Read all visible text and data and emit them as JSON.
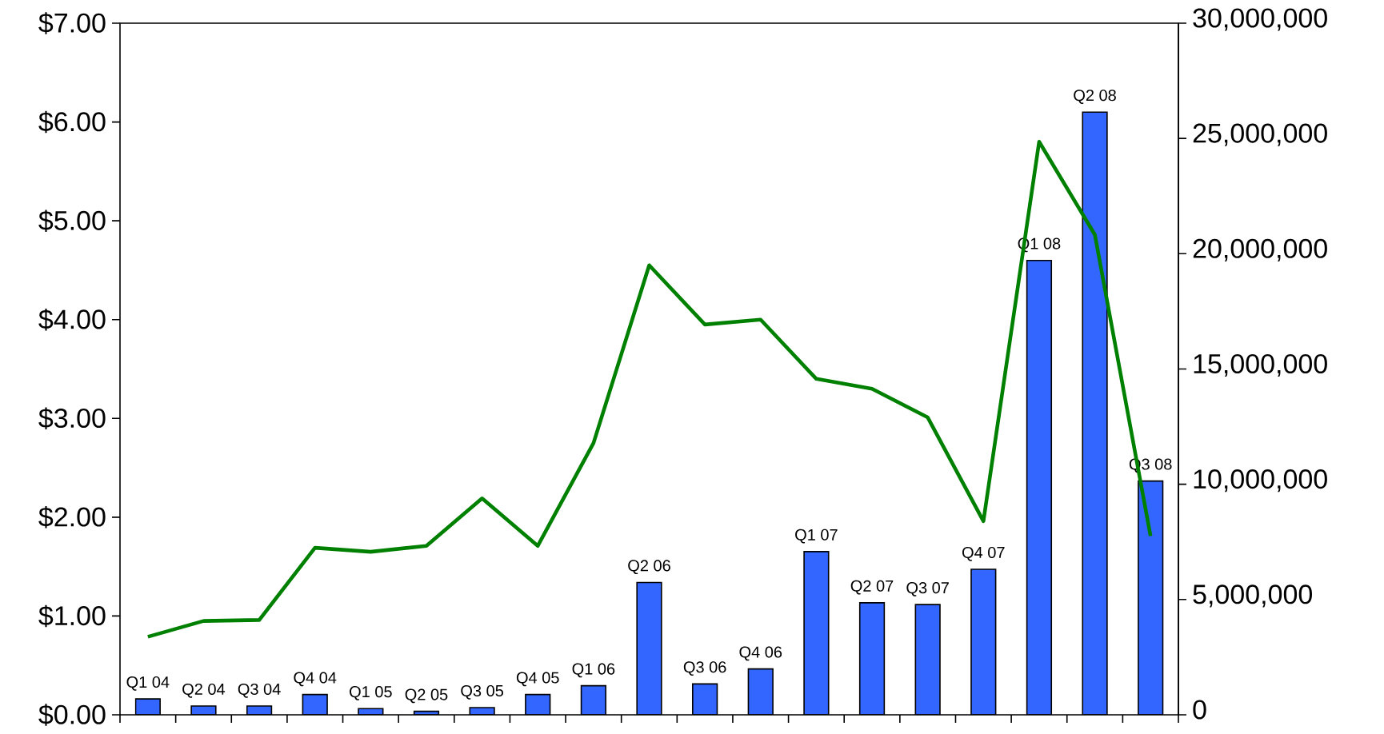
{
  "chart_data": {
    "type": "bar",
    "categories": [
      "Q1 04",
      "Q2 04",
      "Q3 04",
      "Q4 04",
      "Q1 05",
      "Q2 05",
      "Q3 05",
      "Q4 05",
      "Q1 06",
      "Q2 06",
      "Q3 06",
      "Q4 06",
      "Q1 07",
      "Q2 07",
      "Q3 07",
      "Q4 07",
      "Q1 08",
      "Q2 08",
      "Q3 08"
    ],
    "series": [
      {
        "axis": "y2",
        "color": "#3366ff",
        "values": [
          690000,
          380000,
          380000,
          880000,
          270000,
          150000,
          310000,
          880000,
          1260000,
          5740000,
          1340000,
          1990000,
          7080000,
          4860000,
          4780000,
          6310000,
          19710000,
          26140000,
          10140000
        ]
      },
      {
        "type": "line",
        "color": "#008000",
        "values": [
          0.79,
          0.95,
          0.96,
          1.69,
          1.65,
          1.71,
          2.19,
          1.71,
          2.75,
          4.55,
          3.95,
          4.0,
          3.4,
          3.3,
          3.01,
          1.96,
          5.8,
          4.86,
          1.81
        ]
      }
    ],
    "ylim": [
      0,
      7
    ],
    "yticks": [
      {
        "value": 0,
        "label": "$0.00"
      },
      {
        "value": 1,
        "label": "$1.00"
      },
      {
        "value": 2,
        "label": "$2.00"
      },
      {
        "value": 3,
        "label": "$3.00"
      },
      {
        "value": 4,
        "label": "$4.00"
      },
      {
        "value": 5,
        "label": "$5.00"
      },
      {
        "value": 6,
        "label": "$6.00"
      },
      {
        "value": 7,
        "label": "$7.00"
      }
    ],
    "y2lim": [
      0,
      30000000
    ],
    "y2ticks": [
      0,
      {
        "value": 5000000,
        "label": "5,000,000"
      },
      {
        "value": 10000000,
        "label": "10,000,000"
      },
      {
        "value": 15000000,
        "label": "15,000,000"
      },
      {
        "value": 20000000,
        "label": "20,000,000"
      },
      {
        "value": 25000000,
        "label": "25,000,000"
      },
      {
        "value": 30000000,
        "label": "30,000,000"
      }
    ],
    "grid": false,
    "marker": "none",
    "line_style": "solid"
  }
}
